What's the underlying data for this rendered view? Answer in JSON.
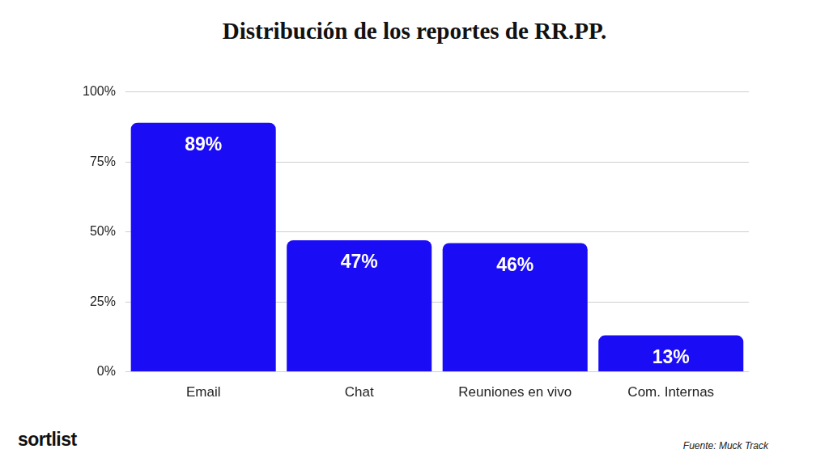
{
  "chart_data": {
    "type": "bar",
    "title": "Distribución de los reportes de RR.PP.",
    "categories": [
      "Email",
      "Chat",
      "Reuniones en vivo",
      "Com. Internas"
    ],
    "values": [
      89,
      47,
      46,
      13
    ],
    "value_labels": [
      "89%",
      "47%",
      "46%",
      "13%"
    ],
    "data_labels": true,
    "color": "#1b0cf6",
    "ylim": [
      0,
      100
    ],
    "yticks": [
      {
        "value": 0,
        "label": "0%"
      },
      {
        "value": 25,
        "label": "25%"
      },
      {
        "value": 50,
        "label": "50%"
      },
      {
        "value": 75,
        "label": "75%"
      },
      {
        "value": 100,
        "label": "100%"
      }
    ],
    "grid": true,
    "logo": "sortlist",
    "source": "Fuente: Muck Track"
  }
}
